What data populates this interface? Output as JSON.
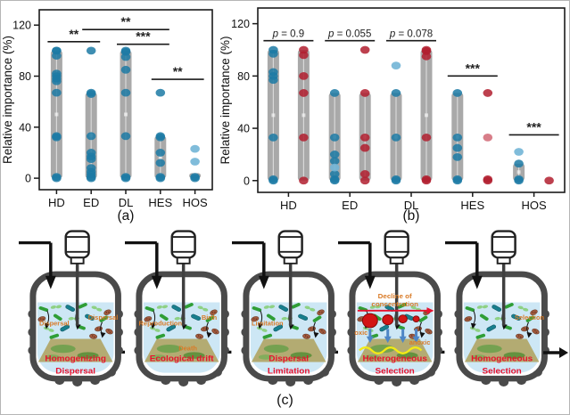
{
  "figure": {
    "caption_a": "(a)",
    "caption_b": "(b)",
    "caption_c": "(c)"
  },
  "colors": {
    "dot_blue": "#1c7aa5",
    "dot_blue_light": "#72b5d6",
    "dot_red": "#b11f2f",
    "dot_red_light": "#d4707c",
    "bar_gray": "#a9a9a9",
    "label_red": "#e8112d",
    "annotation_orange": "#d97a26",
    "liquid_blue": "#cde7f5",
    "vessel_gray": "#4a4a4a",
    "platform_tan": "#b1a86a"
  },
  "chart_data": [
    {
      "type": "scatter",
      "caption": "(a)",
      "ylabel": "Relative importance (%)",
      "yticks": [
        0,
        40,
        80,
        120
      ],
      "ylim": [
        -9,
        132
      ],
      "categories": [
        "HD",
        "ED",
        "DL",
        "HES",
        "HOS"
      ],
      "series": [
        {
          "name": "relative-importance",
          "color": "#1c7aa5",
          "color_light": "#72b5d6",
          "bars": [
            [
              0,
              100
            ],
            [
              0,
              67
            ],
            [
              0,
              100
            ],
            [
              0,
              33
            ],
            [
              0,
              4
            ]
          ],
          "points": [
            [
              100,
              100,
              96,
              82,
              80,
              78,
              76,
              67,
              33,
              32,
              1,
              0
            ],
            [
              100,
              67,
              66,
              33,
              20,
              17,
              15,
              8,
              5,
              3,
              1,
              0
            ],
            [
              100,
              99,
              95,
              85,
              67,
              33,
              1,
              0
            ],
            [
              67,
              33,
              32,
              20,
              12,
              1,
              0
            ],
            [
              1,
              0
            ]
          ],
          "points_light": [
            [],
            [],
            [],
            [],
            [
              23,
              13
            ]
          ]
        }
      ],
      "annotations": [
        {
          "span": [
            0,
            1
          ],
          "y": 107,
          "label": "**"
        },
        {
          "span": [
            1,
            3
          ],
          "y": 116.5,
          "label": "**"
        },
        {
          "span": [
            2,
            3
          ],
          "y": 105,
          "label": "***"
        },
        {
          "span": [
            3,
            4
          ],
          "y": 77.5,
          "label": "**"
        }
      ]
    },
    {
      "type": "scatter",
      "caption": "(b)",
      "ylabel": "Relative importance (%)",
      "yticks": [
        0,
        40,
        80,
        120
      ],
      "ylim": [
        -9,
        132
      ],
      "categories": [
        "HD",
        "ED",
        "DL",
        "HES",
        "HOS"
      ],
      "series": [
        {
          "name": "blue-group",
          "color": "#1c7aa5",
          "color_light": "#72b5d6",
          "bars": [
            [
              0,
              100
            ],
            [
              0,
              67
            ],
            [
              0,
              67
            ],
            [
              0,
              67
            ],
            [
              0,
              13
            ]
          ],
          "points": [
            [
              100,
              97,
              83,
              80,
              77,
              33,
              1,
              0
            ],
            [
              67,
              33,
              20,
              15,
              5,
              1,
              0
            ],
            [
              67,
              33,
              1,
              0
            ],
            [
              67,
              33,
              25,
              18,
              1,
              0
            ],
            [
              13,
              1,
              0
            ]
          ],
          "points_light": [
            [],
            [
              10
            ],
            [
              88
            ],
            [],
            [
              22
            ]
          ]
        },
        {
          "name": "red-group",
          "color": "#b11f2f",
          "color_light": "#d4707c",
          "bars": [
            [
              0,
              100
            ],
            [
              0,
              67
            ],
            [
              0,
              100
            ],
            null,
            null
          ],
          "points": [
            [
              100,
              96,
              80,
              67,
              33,
              0
            ],
            [
              100,
              67,
              33,
              25,
              5,
              0
            ],
            [
              100,
              99,
              95,
              33,
              1,
              0
            ],
            [
              67,
              1,
              0
            ],
            [
              0
            ]
          ],
          "points_light": [
            [],
            [],
            [],
            [
              33
            ],
            []
          ]
        }
      ],
      "annotations": [
        {
          "span": [
            0,
            0
          ],
          "y": 107,
          "label": "p = 0.9"
        },
        {
          "span": [
            1,
            1
          ],
          "y": 107,
          "label": "p = 0.055"
        },
        {
          "span": [
            2,
            2
          ],
          "y": 107,
          "label": "p = 0.078"
        },
        {
          "span": [
            3,
            3
          ],
          "y": 80,
          "label": "***"
        },
        {
          "span": [
            4,
            4
          ],
          "y": 35,
          "label": "***"
        }
      ]
    }
  ],
  "reactors": {
    "items": [
      {
        "id": "homogenizing-dispersal",
        "label_line1": "Homogenizing",
        "label_line2": "Dispersal",
        "annotations": {
          "left": "Dispersal",
          "right": "Dispersal",
          "mid": ""
        }
      },
      {
        "id": "ecological-drift",
        "label_line1": "Ecological drift",
        "label_line2": "",
        "annotations": {
          "left": "Reproduction",
          "right": "Birth",
          "mid": "Death"
        }
      },
      {
        "id": "dispersal-limitation",
        "label_line1": "Dispersal",
        "label_line2": "Limitation",
        "annotations": {
          "left": "Limitation",
          "right": "",
          "mid": ""
        }
      },
      {
        "id": "heterogeneous-selection",
        "label_line1": "Heterogeneous",
        "label_line2": "Selection",
        "annotations": {
          "left": "oxic",
          "right": "anoxic",
          "mid": ""
        },
        "has_decline": true,
        "decline_text_line1": "Decline of",
        "decline_text_line2": "concentration"
      },
      {
        "id": "homogeneous-selection",
        "label_line1": "Homogeneous",
        "label_line2": "Selection",
        "annotations": {
          "left": "",
          "right": "Selection",
          "mid": ""
        },
        "has_outflow": true
      }
    ]
  }
}
